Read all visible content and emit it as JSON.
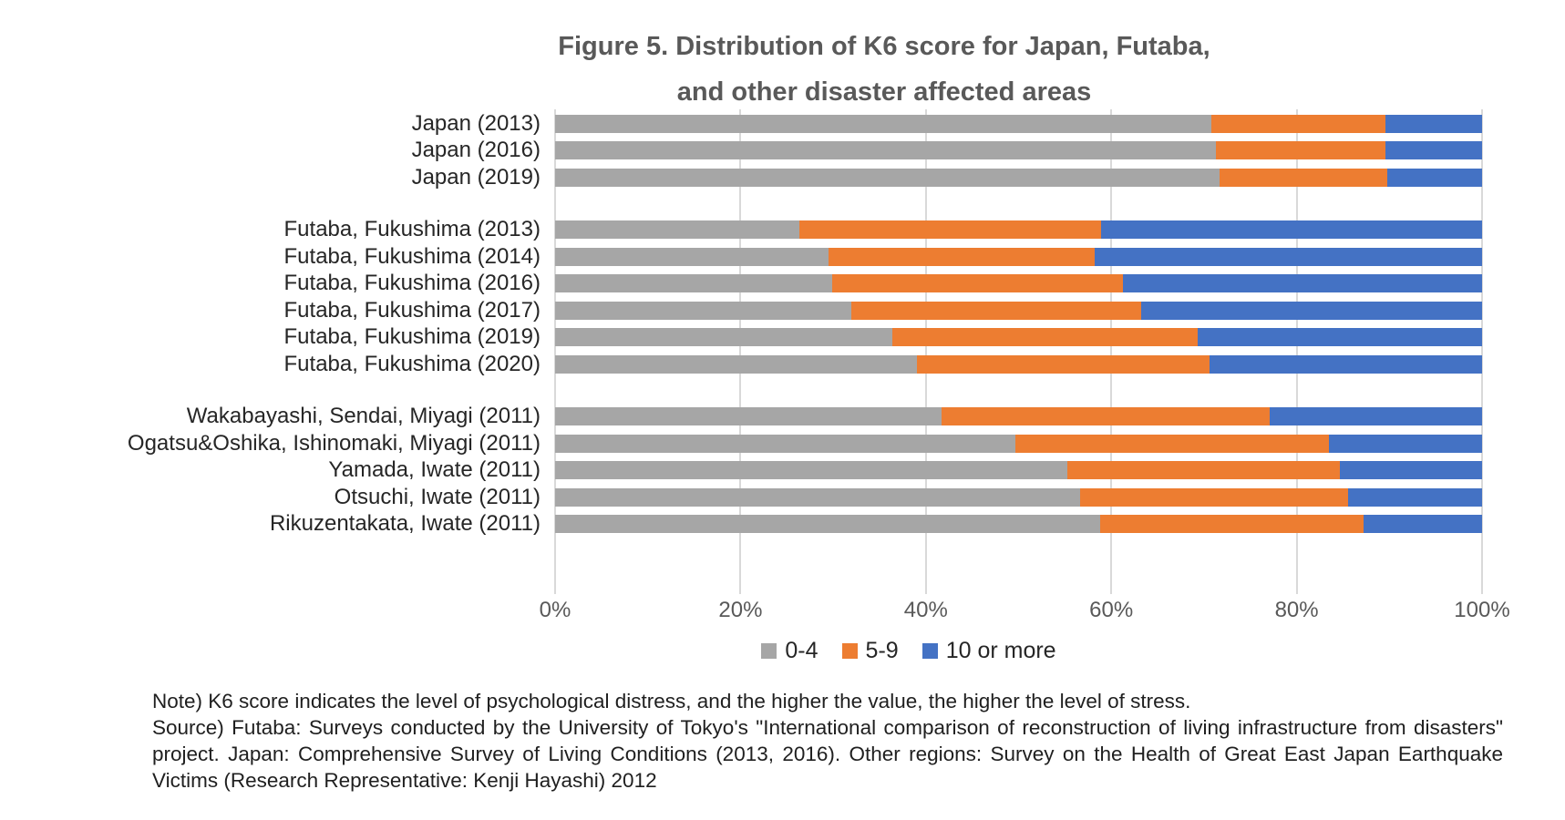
{
  "title": {
    "line1": "Figure 5. Distribution of K6 score for Japan, Futaba,",
    "line2": "and other disaster affected areas"
  },
  "notes": {
    "note_line": "Note) K6 score indicates the level of psychological distress, and the higher the value, the higher the level of stress.",
    "source_text": "Source) Futaba: Surveys conducted by the University of Tokyo's \"International comparison of reconstruction of living infrastructure from disasters\" project. Japan: Comprehensive Survey of Living Conditions (2013, 2016). Other regions: Survey on the Health of Great East Japan Earthquake Victims (Research Representative: Kenji Hayashi) 2012"
  },
  "colors": {
    "series_0_4": "#A6A6A6",
    "series_5_9": "#ED7D31",
    "series_10_or_more": "#4472C4",
    "gridline": "#D9D9D9",
    "title_text": "#595959",
    "axis_text": "#595959"
  },
  "chart_data": {
    "type": "bar",
    "orientation": "horizontal",
    "stacked": true,
    "unit": "percent",
    "title": "Figure 5. Distribution of K6 score for Japan, Futaba, and other disaster affected areas",
    "xlabel": "",
    "ylabel": "",
    "xlim": [
      0,
      100
    ],
    "x_ticks": [
      "0%",
      "20%",
      "40%",
      "60%",
      "80%",
      "100%"
    ],
    "grid": true,
    "legend_position": "bottom",
    "legend": [
      {
        "label": "0-4",
        "color": "#A6A6A6"
      },
      {
        "label": "5-9",
        "color": "#ED7D31"
      },
      {
        "label": "10 or more",
        "color": "#4472C4"
      }
    ],
    "series_names": [
      "0-4",
      "5-9",
      "10 or more"
    ],
    "rows": [
      {
        "label": "Japan (2013)",
        "group": 1,
        "values": [
          70.8,
          18.8,
          10.4
        ]
      },
      {
        "label": "Japan (2016)",
        "group": 1,
        "values": [
          71.3,
          18.3,
          10.4
        ]
      },
      {
        "label": "Japan (2019)",
        "group": 1,
        "values": [
          71.7,
          18.1,
          10.2
        ]
      },
      {
        "label": "Futaba, Fukushima (2013)",
        "group": 2,
        "values": [
          26.4,
          32.5,
          41.1
        ]
      },
      {
        "label": "Futaba, Fukushima (2014)",
        "group": 2,
        "values": [
          29.5,
          28.7,
          41.8
        ]
      },
      {
        "label": "Futaba, Fukushima (2016)",
        "group": 2,
        "values": [
          29.9,
          31.4,
          38.7
        ]
      },
      {
        "label": "Futaba, Fukushima (2017)",
        "group": 2,
        "values": [
          32.0,
          31.2,
          36.8
        ]
      },
      {
        "label": "Futaba, Fukushima (2019)",
        "group": 2,
        "values": [
          36.4,
          32.9,
          30.7
        ]
      },
      {
        "label": "Futaba, Fukushima (2020)",
        "group": 2,
        "values": [
          39.0,
          31.6,
          29.4
        ]
      },
      {
        "label": "Wakabayashi, Sendai, Miyagi (2011)",
        "group": 3,
        "values": [
          41.7,
          35.4,
          22.9
        ]
      },
      {
        "label": "Ogatsu&Oshika, Ishinomaki, Miyagi (2011)",
        "group": 3,
        "values": [
          49.7,
          33.8,
          16.5
        ]
      },
      {
        "label": "Yamada, Iwate (2011)",
        "group": 3,
        "values": [
          55.3,
          29.4,
          15.3
        ]
      },
      {
        "label": "Otsuchi, Iwate (2011)",
        "group": 3,
        "values": [
          56.6,
          28.9,
          14.5
        ]
      },
      {
        "label": "Rikuzentakata, Iwate (2011)",
        "group": 3,
        "values": [
          58.8,
          28.4,
          12.8
        ]
      }
    ]
  }
}
